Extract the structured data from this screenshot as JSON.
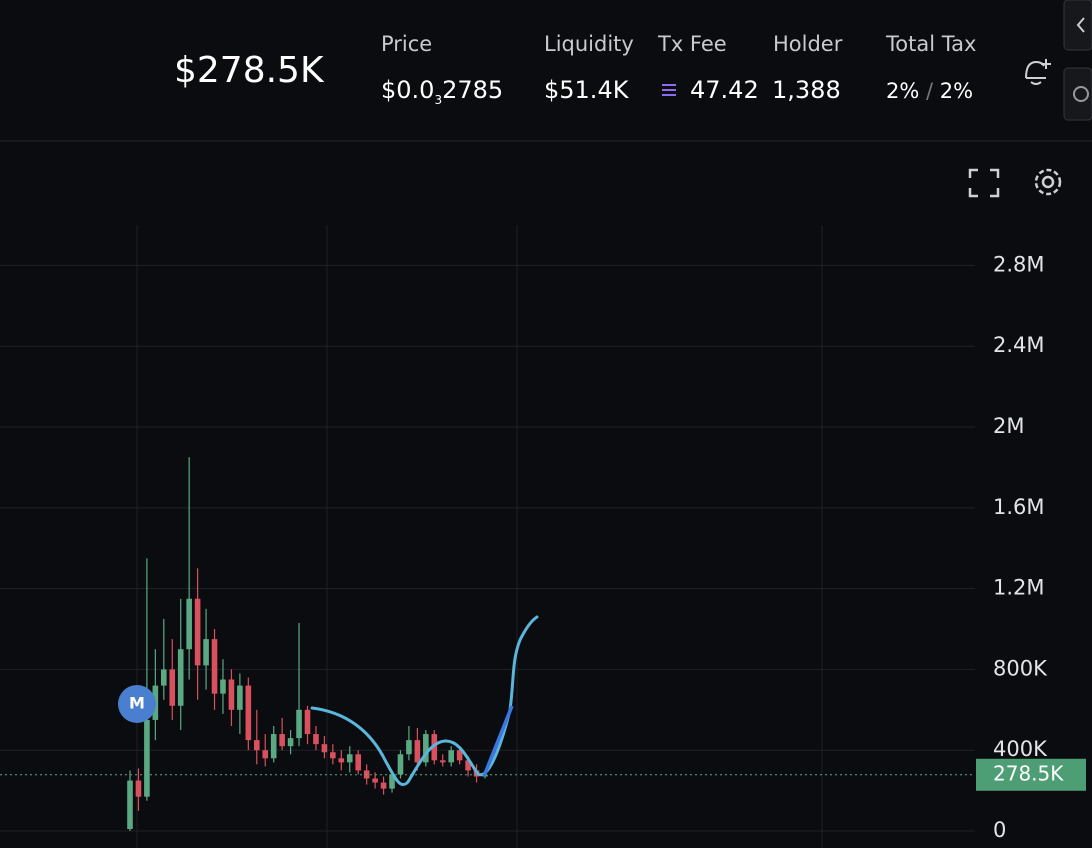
{
  "header": {
    "market_cap": "$278.5K",
    "stats": [
      {
        "label": "Price",
        "value_parts": [
          "$0.0",
          "3",
          "2785"
        ]
      },
      {
        "label": "Liquidity",
        "value": "$51.4K"
      },
      {
        "label": "Tx Fee",
        "value": "47.42"
      },
      {
        "label": "Holder",
        "value": "1,388"
      },
      {
        "label": "Total Tax",
        "buy": "2%",
        "separator": "/",
        "sell": "2%"
      }
    ]
  },
  "chart_data": {
    "type": "candlestick",
    "marker": "M",
    "ylim": [
      -84000,
      3000000
    ],
    "yticks": [
      0,
      {
        "value": 400000,
        "label": "400K"
      },
      {
        "value": 800000,
        "label": "800K"
      },
      {
        "value": 1200000,
        "label": "1.2M"
      },
      {
        "value": 1600000,
        "label": "1.6M"
      },
      {
        "value": 2000000,
        "label": "2M"
      },
      {
        "value": 2400000,
        "label": "2.4M"
      },
      {
        "value": 2800000,
        "label": "2.8M"
      }
    ],
    "grid": true,
    "up_color": "#5aa982",
    "down_color": "#d9505e",
    "last_price": 278500,
    "last_price_label": "278.5K",
    "open": [
      10000,
      250000,
      170000,
      550000,
      720000,
      800000,
      620000,
      900000,
      1150000,
      820000,
      950000,
      680000,
      750000,
      600000,
      720000,
      450000,
      400000,
      360000,
      480000,
      420000,
      460000,
      600000,
      480000,
      430000,
      390000,
      360000,
      340000,
      380000,
      300000,
      260000,
      240000,
      210000,
      280000,
      380000,
      450000,
      340000,
      480000,
      350000,
      340000,
      400000,
      350000,
      300000,
      270000
    ],
    "high": [
      300000,
      310000,
      1350000,
      900000,
      1050000,
      950000,
      1150000,
      1850000,
      1300000,
      1100000,
      1000000,
      850000,
      800000,
      780000,
      760000,
      600000,
      480000,
      520000,
      560000,
      500000,
      1030000,
      620000,
      520000,
      470000,
      430000,
      400000,
      420000,
      400000,
      330000,
      290000,
      270000,
      300000,
      400000,
      520000,
      510000,
      500000,
      500000,
      380000,
      420000,
      410000,
      370000,
      330000,
      300000
    ],
    "low": [
      0,
      100000,
      150000,
      450000,
      650000,
      550000,
      500000,
      750000,
      650000,
      700000,
      600000,
      580000,
      520000,
      480000,
      400000,
      330000,
      320000,
      340000,
      400000,
      380000,
      420000,
      430000,
      400000,
      360000,
      330000,
      300000,
      290000,
      280000,
      230000,
      210000,
      180000,
      190000,
      260000,
      350000,
      300000,
      320000,
      330000,
      320000,
      320000,
      330000,
      270000,
      240000,
      260000
    ],
    "close": [
      250000,
      170000,
      550000,
      720000,
      800000,
      620000,
      900000,
      1150000,
      820000,
      950000,
      680000,
      750000,
      600000,
      720000,
      450000,
      400000,
      360000,
      480000,
      420000,
      460000,
      600000,
      480000,
      430000,
      390000,
      360000,
      340000,
      380000,
      300000,
      260000,
      240000,
      210000,
      280000,
      380000,
      450000,
      340000,
      480000,
      350000,
      340000,
      400000,
      350000,
      300000,
      270000,
      278500
    ]
  }
}
